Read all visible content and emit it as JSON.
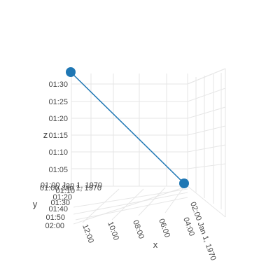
{
  "chart_data": {
    "type": "scatter3d",
    "mode": "lines+markers",
    "axes": {
      "x": {
        "title": "x",
        "ticks": [
          "12:00",
          "10:00",
          "08:00",
          "06:00",
          "04:00",
          "02:00\nJan 1, 1970"
        ]
      },
      "y": {
        "title": "y",
        "ticks": [
          "02:00",
          "01:50",
          "01:40",
          "01:30",
          "01:20",
          "01:10",
          "01:00\nJan 1, 1970"
        ]
      },
      "z": {
        "title": "z",
        "ticks": [
          "01:05",
          "01:10",
          "01:15",
          "01:20",
          "01:25",
          "01:30"
        ]
      }
    },
    "series": [
      {
        "color": "#1f77b4",
        "points": [
          {
            "x": "1970-01-01 12:00",
            "y": "1970-01-01 01:00",
            "z": "1970-01-01 01:32"
          },
          {
            "x": "1970-01-01 02:00",
            "y": "1970-01-01 01:00",
            "z": "1970-01-01 01:00"
          }
        ]
      }
    ]
  }
}
